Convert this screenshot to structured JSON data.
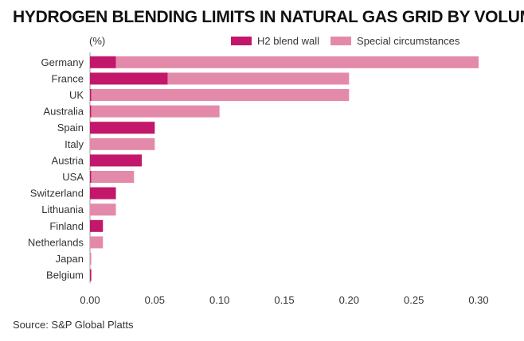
{
  "title": "HYDROGEN BLENDING LIMITS IN NATURAL GAS GRID BY VOLUME",
  "unit_label": "(%)",
  "source": "Source: S&P Global Platts",
  "colors": {
    "blend_wall": "#c2176a",
    "special": "#e38aaa",
    "axis": "#999999"
  },
  "chart_data": {
    "type": "bar",
    "orientation": "horizontal",
    "stacked": true,
    "categories": [
      "Germany",
      "France",
      "UK",
      "Australia",
      "Spain",
      "Italy",
      "Austria",
      "USA",
      "Switzerland",
      "Lithuania",
      "Finland",
      "Netherlands",
      "Japan",
      "Belgium"
    ],
    "series": [
      {
        "name": "H2 blend wall",
        "values": [
          0.02,
          0.06,
          0.001,
          0.001,
          0.05,
          0,
          0.04,
          0.001,
          0.02,
          0,
          0.01,
          0,
          0,
          0.001
        ]
      },
      {
        "name": "Special circumstances",
        "values": [
          0.28,
          0.14,
          0.199,
          0.099,
          0,
          0.05,
          0,
          0.033,
          0,
          0.02,
          0,
          0.01,
          0.001,
          0
        ]
      }
    ],
    "xlim": [
      0,
      0.3
    ],
    "xticks": [
      "0.00",
      "0.05",
      "0.10",
      "0.15",
      "0.20",
      "0.25",
      "0.30"
    ],
    "legend_position": "top-right",
    "grid": false
  }
}
